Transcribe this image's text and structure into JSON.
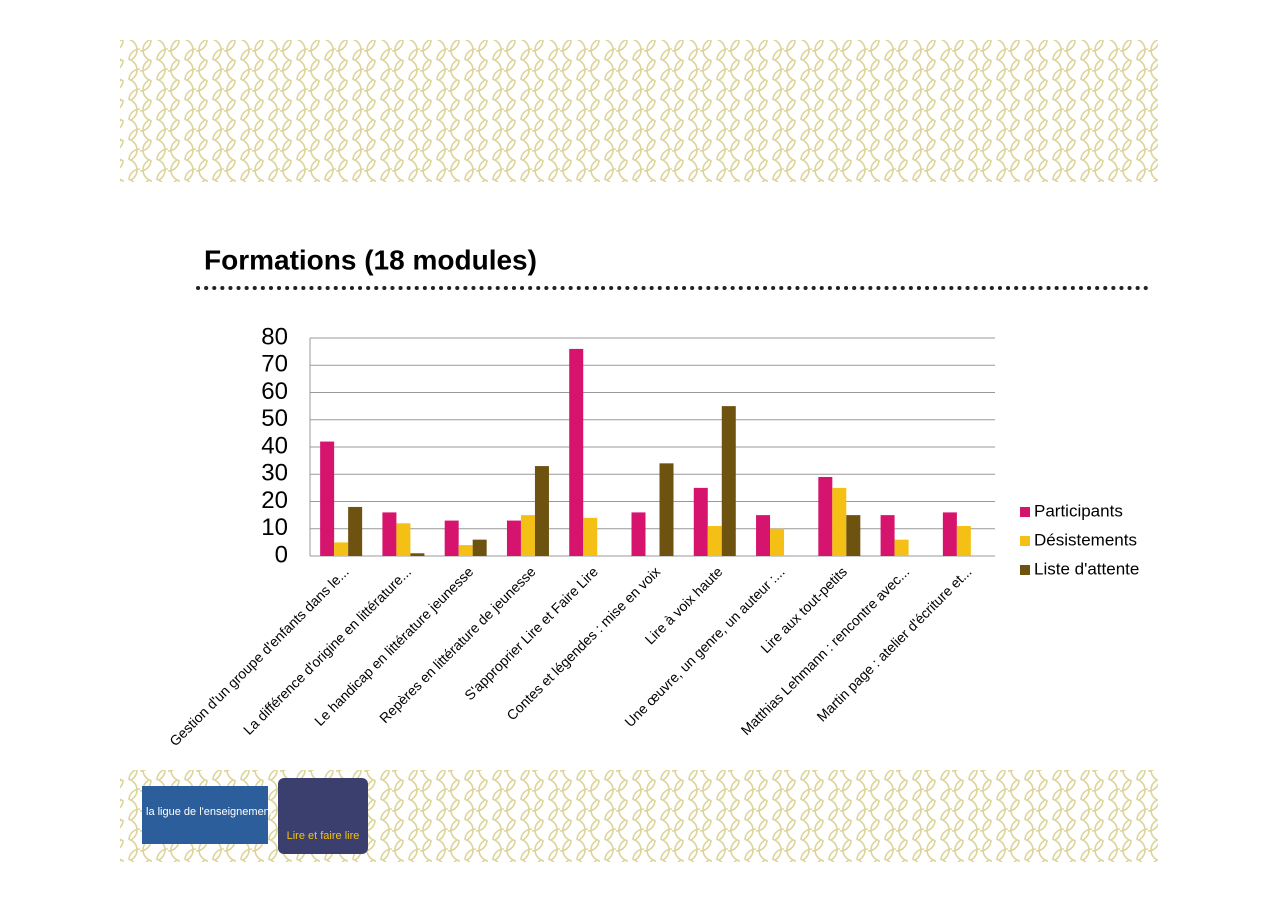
{
  "chart_data": {
    "type": "bar",
    "title": "Formations (18 modules)",
    "categories": [
      "Gestion d'un groupe d'enfants dans le...",
      "La différence d'origine en littérature...",
      "Le handicap en littérature jeunesse",
      "Repères en littérature de jeunesse",
      "S'approprier Lire et Faire Lire",
      "Contes et légendes : mise en voix",
      "Lire à voix haute",
      "Une œuvre, un genre, un auteur :...",
      "Lire aux tout-petits",
      "Matthias Lehmann : rencontre avec...",
      "Martin page : atelier d'écriture et..."
    ],
    "series": [
      {
        "name": "Participants",
        "color": "#d6146e",
        "values": [
          42,
          16,
          13,
          13,
          76,
          16,
          25,
          15,
          29,
          15,
          16
        ]
      },
      {
        "name": "Désistements",
        "color": "#f5c016",
        "values": [
          5,
          12,
          4,
          15,
          14,
          0,
          11,
          10,
          25,
          6,
          11
        ]
      },
      {
        "name": "Liste d'attente",
        "color": "#6e5210",
        "values": [
          18,
          1,
          6,
          33,
          0,
          34,
          55,
          0,
          15,
          0,
          0
        ]
      }
    ],
    "ylim": [
      0,
      80
    ],
    "yticks": [
      0,
      10,
      20,
      30,
      40,
      50,
      60,
      70,
      80
    ],
    "grid": true,
    "legend": "right"
  },
  "logos": {
    "ligue": "la ligue de l'enseignement",
    "lire": "Lire et faire lire"
  }
}
